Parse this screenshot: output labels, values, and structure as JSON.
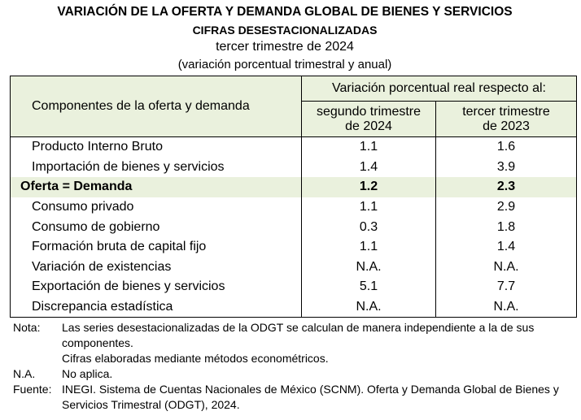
{
  "header": {
    "title": "VARIACIÓN DE LA OFERTA Y DEMANDA GLOBAL DE BIENES Y SERVICIOS",
    "subtitle": "CIFRAS DESESTACIONALIZADAS",
    "period": "tercer trimestre de 2024",
    "unit": "(variación porcentual trimestral y anual)"
  },
  "table": {
    "row_header": "Componentes de la oferta y demanda",
    "group_header": "Variación porcentual real respecto al:",
    "columns": [
      [
        "segundo trimestre",
        "de 2024"
      ],
      [
        "tercer trimestre",
        "de 2023"
      ]
    ],
    "rows": [
      [
        "Producto Interno Bruto",
        1.1,
        1.6
      ],
      [
        "Importación de bienes y servicios",
        1.4,
        3.9
      ],
      [
        "Oferta = Demanda",
        1.2,
        2.3
      ],
      [
        "Consumo privado",
        1.1,
        2.9
      ],
      [
        "Consumo de gobierno",
        0.3,
        1.8
      ],
      [
        "Formación bruta de capital fijo",
        1.1,
        1.4
      ],
      [
        "Variación de existencias",
        "N.A.",
        "N.A."
      ],
      [
        "Exportación de bienes y servicios",
        5.1,
        7.7
      ],
      [
        "Discrepancia estadística",
        "N.A.",
        "N.A."
      ]
    ]
  },
  "notes": [
    [
      "Nota:",
      "Las series desestacionalizadas de la ODGT se calculan de manera independiente a la de sus componentes."
    ],
    [
      null,
      "Cifras elaboradas mediante métodos econométricos."
    ],
    [
      "N.A.",
      "No aplica."
    ],
    [
      "Fuente:",
      "INEGI. Sistema de Cuentas Nacionales de México (SCNM). Oferta y Demanda Global de Bienes y Servicios Trimestral (ODGT), 2024."
    ]
  ]
}
